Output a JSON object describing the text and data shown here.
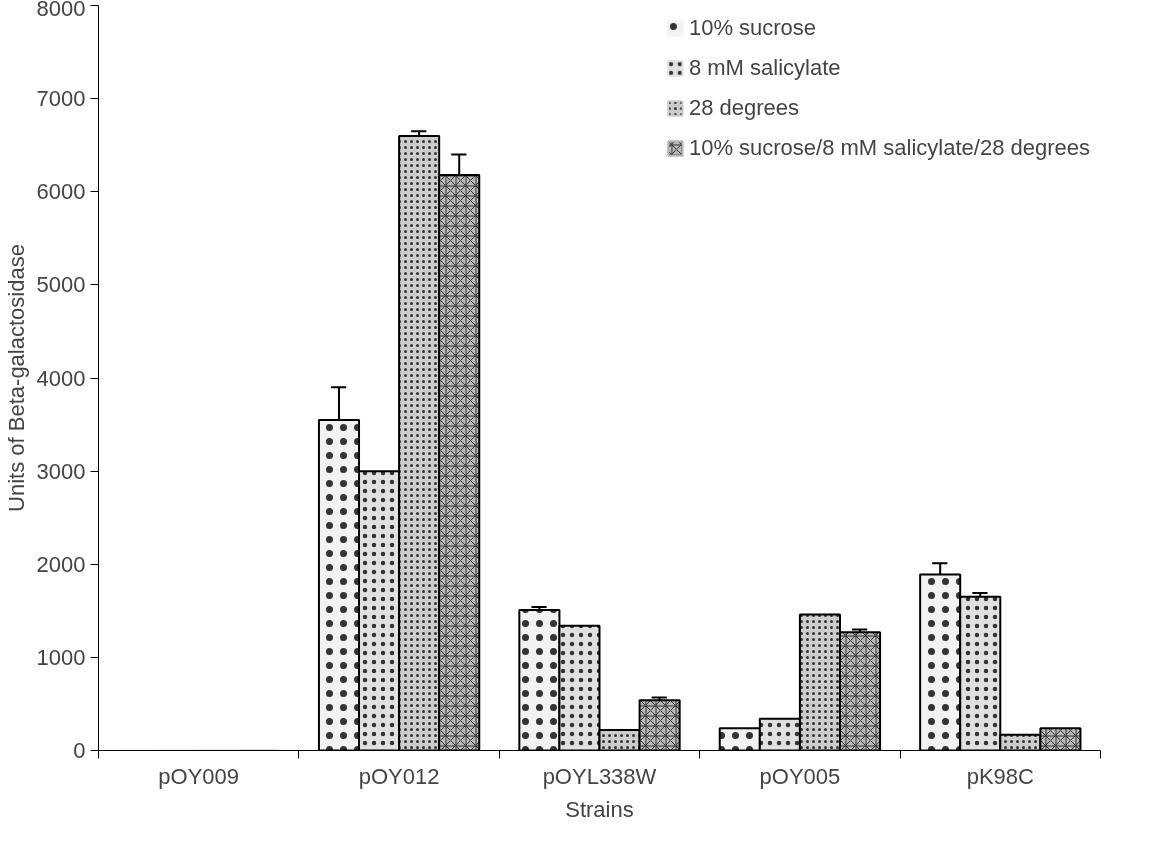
{
  "chart_data": {
    "type": "bar",
    "xlabel": "Strains",
    "ylabel": "Units of Beta-galactosidase",
    "categories": [
      "pOY009",
      "pOY012",
      "pOYL338W",
      "pOY005",
      "pK98C"
    ],
    "series": [
      {
        "name": "10% sucrose",
        "color": "#f2f2f2",
        "values": [
          0,
          3550,
          1510,
          240,
          1890
        ],
        "errors": [
          null,
          [
            3550,
            3900
          ],
          [
            1510,
            1540
          ],
          null,
          [
            1890,
            2010
          ]
        ]
      },
      {
        "name": "8 mM salicylate",
        "color": "#e0e0e0",
        "values": [
          0,
          3000,
          1340,
          340,
          1650
        ],
        "errors": [
          null,
          null,
          null,
          null,
          [
            1650,
            1690
          ]
        ]
      },
      {
        "name": "28 degrees",
        "color": "#cccccc",
        "values": [
          0,
          6600,
          220,
          1460,
          170
        ],
        "errors": [
          null,
          [
            6600,
            6650
          ],
          null,
          null,
          null
        ]
      },
      {
        "name": "10% sucrose/8 mM salicylate/28 degrees",
        "color": "#b8b8b8",
        "values": [
          0,
          6180,
          540,
          1270,
          240
        ],
        "errors": [
          null,
          [
            6180,
            6400
          ],
          [
            540,
            570
          ],
          [
            1270,
            1300
          ],
          null
        ]
      }
    ],
    "ylim": [
      0,
      8000
    ],
    "yticks": [
      0,
      1000,
      2000,
      3000,
      4000,
      5000,
      6000,
      7000,
      8000
    ],
    "grid": false,
    "legend": "top right"
  }
}
